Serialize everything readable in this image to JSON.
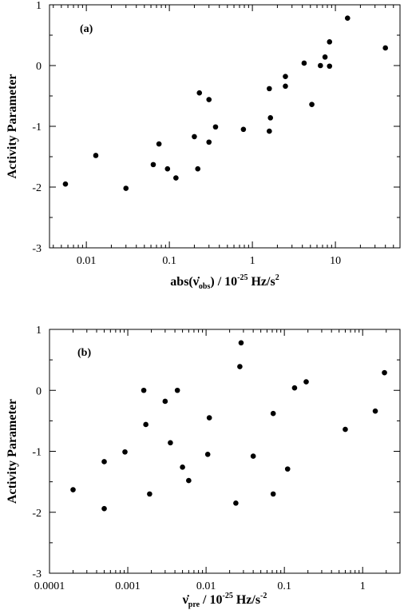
{
  "chart_data": [
    {
      "type": "scatter",
      "panel_label": "(a)",
      "xlabel": "abs(ν̇obs) / 10⁻²⁵ Hz/s²",
      "xlabel_parts": {
        "pre": "abs(",
        "sym": "ν̇",
        "sub": "obs",
        "post": ") / 10",
        "exp": "-25",
        "unit": " Hz/s",
        "unit_exp": "2"
      },
      "ylabel": "Activity Parameter",
      "xscale": "log",
      "xlim": [
        0.0036,
        60
      ],
      "ylim": [
        -3,
        1
      ],
      "xticks": [
        0.01,
        0.1,
        1,
        10
      ],
      "xtick_labels": [
        "0.01",
        "0.1",
        "1",
        "10"
      ],
      "yticks": [
        -3,
        -2,
        -1,
        0,
        1
      ],
      "ytick_labels": [
        "-3",
        "-2",
        "-1",
        "0",
        "1"
      ],
      "grid": false,
      "legend": "none",
      "marker_color": "#000000",
      "points": [
        {
          "x": 0.0056,
          "y": -1.95
        },
        {
          "x": 0.013,
          "y": -1.48
        },
        {
          "x": 0.03,
          "y": -2.02
        },
        {
          "x": 0.064,
          "y": -1.63
        },
        {
          "x": 0.075,
          "y": -1.29
        },
        {
          "x": 0.095,
          "y": -1.7
        },
        {
          "x": 0.12,
          "y": -1.85
        },
        {
          "x": 0.2,
          "y": -1.17
        },
        {
          "x": 0.22,
          "y": -1.7
        },
        {
          "x": 0.23,
          "y": -0.45
        },
        {
          "x": 0.3,
          "y": -0.56
        },
        {
          "x": 0.3,
          "y": -1.26
        },
        {
          "x": 0.36,
          "y": -1.01
        },
        {
          "x": 0.78,
          "y": -1.05
        },
        {
          "x": 1.6,
          "y": -0.38
        },
        {
          "x": 1.65,
          "y": -0.86
        },
        {
          "x": 1.6,
          "y": -1.08
        },
        {
          "x": 2.5,
          "y": -0.18
        },
        {
          "x": 2.5,
          "y": -0.34
        },
        {
          "x": 4.2,
          "y": 0.04
        },
        {
          "x": 5.2,
          "y": -0.64
        },
        {
          "x": 6.6,
          "y": 0.0
        },
        {
          "x": 7.5,
          "y": 0.14
        },
        {
          "x": 8.5,
          "y": 0.39
        },
        {
          "x": 8.5,
          "y": -0.01
        },
        {
          "x": 14,
          "y": 0.78
        },
        {
          "x": 40,
          "y": 0.29
        }
      ]
    },
    {
      "type": "scatter",
      "panel_label": "(b)",
      "xlabel": "ν̇pre / 10⁻²⁵ Hz/s⁻²",
      "xlabel_parts": {
        "pre": "",
        "sym": "ν̇",
        "sub": "pre",
        "post": " / 10",
        "exp": "-25",
        "unit": " Hz/s",
        "unit_exp": "-2"
      },
      "ylabel": "Activity Parameter",
      "xscale": "log",
      "xlim": [
        0.0001,
        3
      ],
      "ylim": [
        -3,
        1
      ],
      "xticks": [
        0.0001,
        0.001,
        0.01,
        0.1,
        1
      ],
      "xtick_labels": [
        "0.0001",
        "0.001",
        "0.01",
        "0.1",
        "1"
      ],
      "yticks": [
        -3,
        -2,
        -1,
        0,
        1
      ],
      "ytick_labels": [
        "-3",
        "-2",
        "-1",
        "0",
        "1"
      ],
      "grid": false,
      "legend": "none",
      "marker_color": "#000000",
      "points": [
        {
          "x": 0.0002,
          "y": -1.63
        },
        {
          "x": 0.0005,
          "y": -1.17
        },
        {
          "x": 0.0005,
          "y": -1.94
        },
        {
          "x": 0.00092,
          "y": -1.01
        },
        {
          "x": 0.0016,
          "y": 0.0
        },
        {
          "x": 0.0017,
          "y": -0.56
        },
        {
          "x": 0.0019,
          "y": -1.7
        },
        {
          "x": 0.003,
          "y": -0.18
        },
        {
          "x": 0.0035,
          "y": -0.86
        },
        {
          "x": 0.0043,
          "y": 0.0
        },
        {
          "x": 0.005,
          "y": -1.26
        },
        {
          "x": 0.006,
          "y": -1.48
        },
        {
          "x": 0.0105,
          "y": -1.05
        },
        {
          "x": 0.011,
          "y": -0.45
        },
        {
          "x": 0.024,
          "y": -1.85
        },
        {
          "x": 0.027,
          "y": 0.39
        },
        {
          "x": 0.028,
          "y": 0.78
        },
        {
          "x": 0.04,
          "y": -1.08
        },
        {
          "x": 0.072,
          "y": -1.7
        },
        {
          "x": 0.072,
          "y": -0.38
        },
        {
          "x": 0.11,
          "y": -1.29
        },
        {
          "x": 0.135,
          "y": 0.04
        },
        {
          "x": 0.19,
          "y": 0.14
        },
        {
          "x": 0.6,
          "y": -0.64
        },
        {
          "x": 1.45,
          "y": -0.34
        },
        {
          "x": 1.9,
          "y": 0.29
        }
      ]
    }
  ]
}
